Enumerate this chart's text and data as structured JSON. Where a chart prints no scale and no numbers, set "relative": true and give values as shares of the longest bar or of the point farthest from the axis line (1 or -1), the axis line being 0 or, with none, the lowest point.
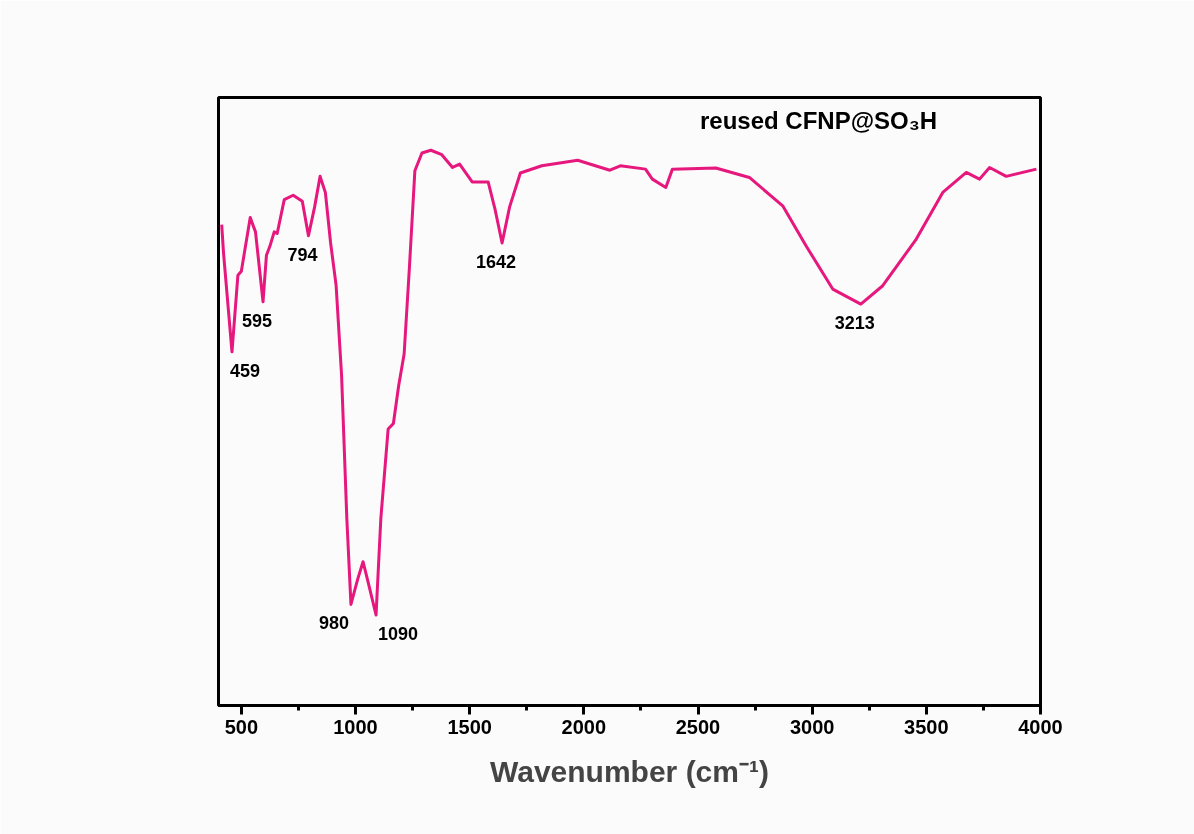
{
  "chart_data": {
    "type": "line",
    "title": "reused CFNP@SO₃H",
    "xlabel": "Wavenumber (cm⁻¹)",
    "relative": true,
    "xlim": [
      400,
      4000
    ],
    "xticks": [
      500,
      1000,
      1500,
      2000,
      2500,
      3000,
      3500,
      4000
    ],
    "grid": false,
    "marker": "none",
    "line_style": "solid",
    "series": [
      {
        "color": "#e6177d",
        "x": [
          414,
          422,
          459,
          485,
          500,
          539,
          562,
          595,
          610,
          625,
          644,
          657,
          688,
          727,
          767,
          794,
          821,
          845,
          868,
          891,
          915,
          939,
          962,
          980,
          1010,
          1033,
          1056,
          1090,
          1111,
          1143,
          1166,
          1189,
          1213,
          1236,
          1260,
          1291,
          1330,
          1378,
          1425,
          1456,
          1511,
          1581,
          1612,
          1642,
          1675,
          1722,
          1816,
          1973,
          2114,
          2160,
          2270,
          2300,
          2359,
          2388,
          2578,
          2725,
          2871,
          2973,
          3090,
          3213,
          3309,
          3456,
          3572,
          3675,
          3733,
          3777,
          3850,
          3982
        ],
        "values": [
          0.866,
          0.815,
          0.637,
          0.775,
          0.782,
          0.879,
          0.853,
          0.727,
          0.811,
          0.827,
          0.853,
          0.85,
          0.911,
          0.919,
          0.908,
          0.846,
          0.898,
          0.953,
          0.924,
          0.833,
          0.757,
          0.595,
          0.337,
          0.182,
          0.228,
          0.259,
          0.221,
          0.163,
          0.337,
          0.498,
          0.508,
          0.576,
          0.633,
          0.788,
          0.963,
          0.995,
          1.0,
          0.992,
          0.969,
          0.975,
          0.943,
          0.943,
          0.892,
          0.833,
          0.898,
          0.959,
          0.972,
          0.982,
          0.964,
          0.972,
          0.966,
          0.948,
          0.933,
          0.966,
          0.968,
          0.951,
          0.9,
          0.828,
          0.75,
          0.723,
          0.756,
          0.84,
          0.924,
          0.96,
          0.948,
          0.969,
          0.953,
          0.966
        ]
      }
    ],
    "annotations": [
      {
        "text": "459",
        "x": 459,
        "y": 0.637
      },
      {
        "text": "595",
        "x": 595,
        "y": 0.727
      },
      {
        "text": "794",
        "x": 794,
        "y": 0.846
      },
      {
        "text": "980",
        "x": 980,
        "y": 0.182
      },
      {
        "text": "1090",
        "x": 1090,
        "y": 0.163
      },
      {
        "text": "1642",
        "x": 1642,
        "y": 0.833
      },
      {
        "text": "3213",
        "x": 3213,
        "y": 0.723
      }
    ]
  }
}
